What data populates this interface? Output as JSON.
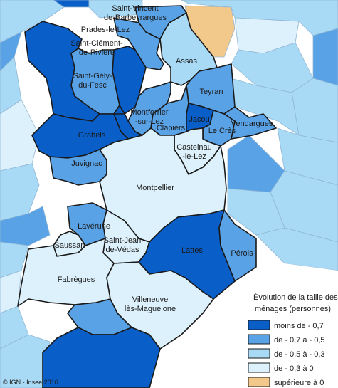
{
  "colors": {
    "sea": "#ffffff",
    "c1": "#0a5ec8",
    "c2": "#5aa2e6",
    "c3": "#a9daf5",
    "c4": "#dcf1fb",
    "c5": "#f3c98b"
  },
  "communes": [
    {
      "id": "saint-vincent",
      "name": "Saint-Vincent-de-Barbeyrargues",
      "lines": [
        "Saint-Vincent",
        "de-Barbeyrargues"
      ],
      "cls": "c2"
    },
    {
      "id": "prades",
      "name": "Prades-le-Lez",
      "lines": [
        "Prades-le-Lez"
      ],
      "cls": "c2"
    },
    {
      "id": "saint-clement",
      "name": "Saint-Clément-de-Rivière",
      "lines": [
        "Saint-Clément-",
        "de-Rivière"
      ],
      "cls": "c1"
    },
    {
      "id": "assas",
      "name": "Assas",
      "lines": [
        "Assas"
      ],
      "cls": "c3"
    },
    {
      "id": "saint-gely",
      "name": "Saint-Gély-du-Fesc",
      "lines": [
        "Saint-Gély-",
        "du-Fesc"
      ],
      "cls": "c2"
    },
    {
      "id": "teyran",
      "name": "Teyran",
      "lines": [
        "Teyran"
      ],
      "cls": "c2"
    },
    {
      "id": "montferrier",
      "name": "Montferrier-sur-Lez",
      "lines": [
        "Montferrier",
        "-sur-Lez"
      ],
      "cls": "c2"
    },
    {
      "id": "jacou",
      "name": "Jacou",
      "lines": [
        "Jacou"
      ],
      "cls": "c1"
    },
    {
      "id": "clapiers",
      "name": "Clapiers",
      "lines": [
        "Clapiers"
      ],
      "cls": "c2"
    },
    {
      "id": "le-cres",
      "name": "Le Crès",
      "lines": [
        "Le Crès"
      ],
      "cls": "c2"
    },
    {
      "id": "vendargues",
      "name": "Vendargues",
      "lines": [
        "Vendargues"
      ],
      "cls": "c2"
    },
    {
      "id": "grabels",
      "name": "Grabels",
      "lines": [
        "Grabels"
      ],
      "cls": "c1"
    },
    {
      "id": "castelnau",
      "name": "Castelnau-le-Lez",
      "lines": [
        "Castelnau",
        "-le-Lez"
      ],
      "cls": "c4"
    },
    {
      "id": "juvignac",
      "name": "Juvignac",
      "lines": [
        "Juvignac"
      ],
      "cls": "c2"
    },
    {
      "id": "montpellier",
      "name": "Montpellier",
      "lines": [
        "Montpellier"
      ],
      "cls": "c4"
    },
    {
      "id": "laverune",
      "name": "Lavérune",
      "lines": [
        "Lavérune"
      ],
      "cls": "c2"
    },
    {
      "id": "saint-jean",
      "name": "Saint-Jean-de-Védas",
      "lines": [
        "Saint-Jean",
        "de-Védas"
      ],
      "cls": "c4"
    },
    {
      "id": "saussan",
      "name": "Saussan",
      "lines": [
        "Saussan"
      ],
      "cls": "c4"
    },
    {
      "id": "lattes",
      "name": "Lattes",
      "lines": [
        "Lattes"
      ],
      "cls": "c1"
    },
    {
      "id": "perols",
      "name": "Pérols",
      "lines": [
        "Pérols"
      ],
      "cls": "c2"
    },
    {
      "id": "fabregues",
      "name": "Fabrègues",
      "lines": [
        "Fabrègues"
      ],
      "cls": "c4"
    },
    {
      "id": "villeneuve",
      "name": "Villeneuve-lès-Maguelone",
      "lines": [
        "Villeneuve",
        "lès-Maguelone"
      ],
      "cls": "c4"
    }
  ],
  "legend": {
    "title_lines": [
      "Évolution de la taille des",
      "ménages (personnes)"
    ],
    "items": [
      {
        "label": "moins de - 0,7",
        "cls": "c1"
      },
      {
        "label": "de - 0,7 à - 0,5",
        "cls": "c2"
      },
      {
        "label": "de - 0,5 à - 0,3",
        "cls": "c3"
      },
      {
        "label": "de - 0,3 à 0",
        "cls": "c4"
      },
      {
        "label": "supérieure à 0",
        "cls": "c5"
      }
    ]
  },
  "credit": "© IGN - Insee 2016"
}
